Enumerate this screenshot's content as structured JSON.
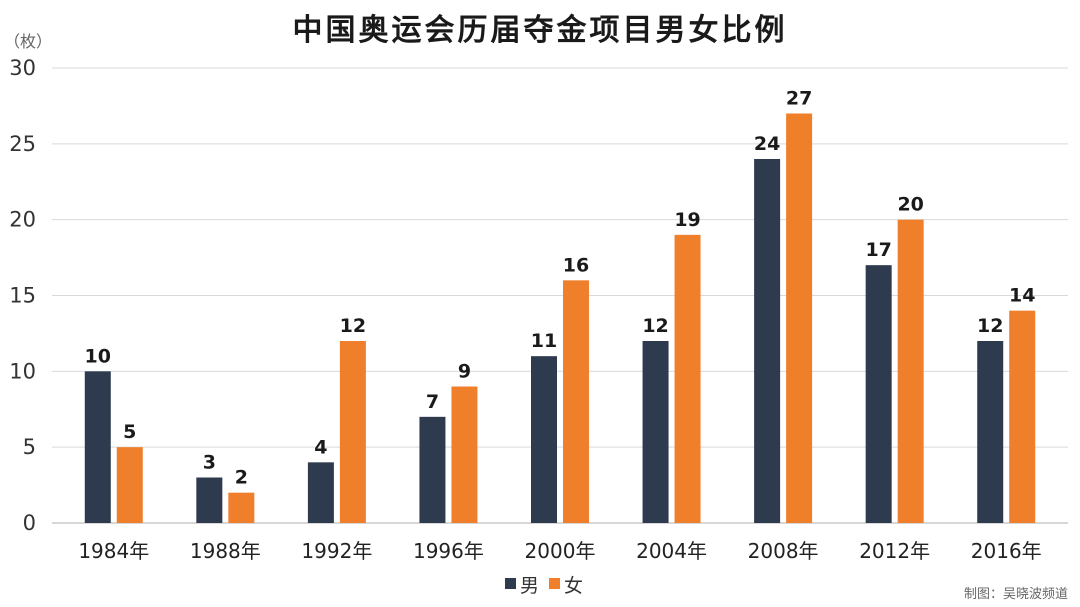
{
  "chart_data": {
    "type": "bar",
    "title": "中国奥运会历届夺金项目男女比例",
    "unit_label": "（枚）",
    "categories": [
      "1984年",
      "1988年",
      "1992年",
      "1996年",
      "2000年",
      "2004年",
      "2008年",
      "2012年",
      "2016年"
    ],
    "series": [
      {
        "name": "男",
        "color": "#2e3b4e",
        "values": [
          10,
          3,
          4,
          7,
          11,
          12,
          24,
          17,
          12
        ]
      },
      {
        "name": "女",
        "color": "#f07f2c",
        "values": [
          5,
          2,
          12,
          9,
          16,
          19,
          27,
          20,
          14
        ]
      }
    ],
    "ylim": [
      0,
      30
    ],
    "yticks": [
      0,
      5,
      10,
      15,
      20,
      25,
      30
    ],
    "grid": true,
    "legend_position": "bottom-center",
    "credit": "制图：吴晓波频道"
  }
}
